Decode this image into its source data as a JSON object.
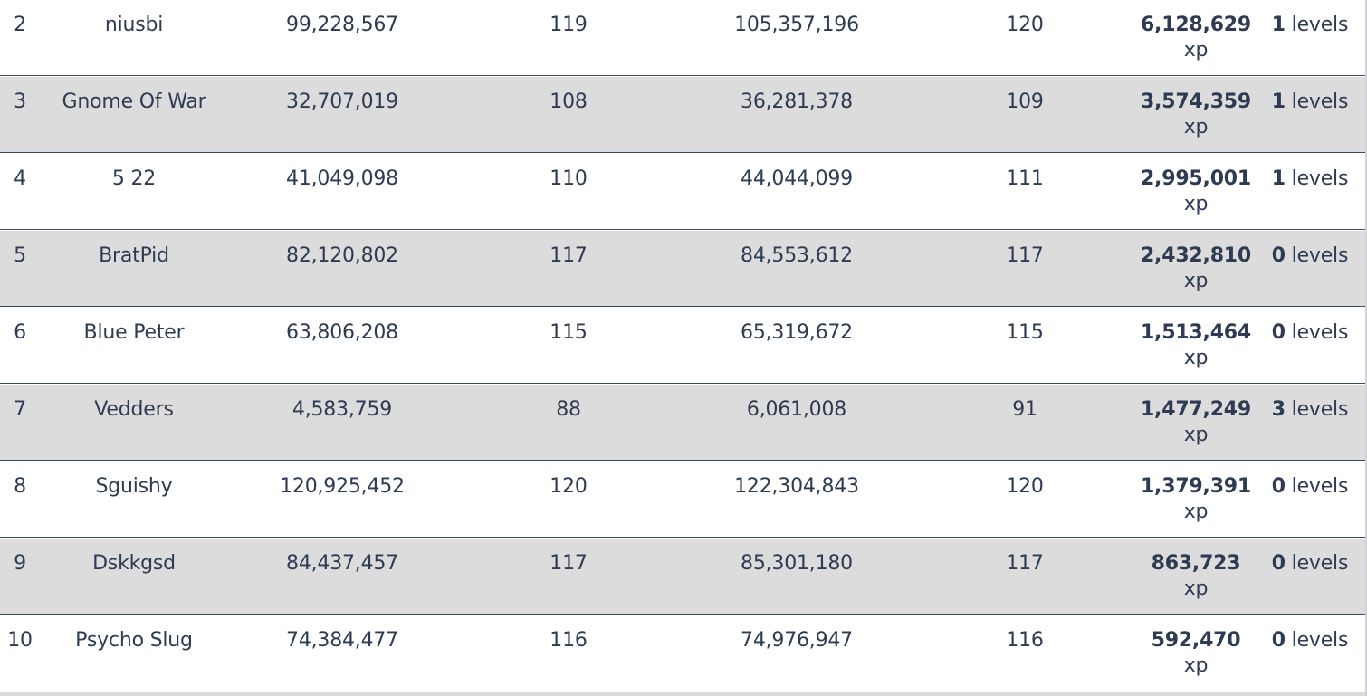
{
  "table": {
    "rows": [
      {
        "rank": "2",
        "name": "niusbi",
        "start_xp": "99,228,567",
        "start_level": "119",
        "end_xp": "105,357,196",
        "end_level": "120",
        "xp_gained": "6,128,629",
        "xp_unit": "xp",
        "levels_gained": "1",
        "levels_unit": "levels"
      },
      {
        "rank": "3",
        "name": "Gnome Of War",
        "start_xp": "32,707,019",
        "start_level": "108",
        "end_xp": "36,281,378",
        "end_level": "109",
        "xp_gained": "3,574,359",
        "xp_unit": "xp",
        "levels_gained": "1",
        "levels_unit": "levels"
      },
      {
        "rank": "4",
        "name": "5 22",
        "start_xp": "41,049,098",
        "start_level": "110",
        "end_xp": "44,044,099",
        "end_level": "111",
        "xp_gained": "2,995,001",
        "xp_unit": "xp",
        "levels_gained": "1",
        "levels_unit": "levels"
      },
      {
        "rank": "5",
        "name": "BratPid",
        "start_xp": "82,120,802",
        "start_level": "117",
        "end_xp": "84,553,612",
        "end_level": "117",
        "xp_gained": "2,432,810",
        "xp_unit": "xp",
        "levels_gained": "0",
        "levels_unit": "levels"
      },
      {
        "rank": "6",
        "name": "Blue Peter",
        "start_xp": "63,806,208",
        "start_level": "115",
        "end_xp": "65,319,672",
        "end_level": "115",
        "xp_gained": "1,513,464",
        "xp_unit": "xp",
        "levels_gained": "0",
        "levels_unit": "levels"
      },
      {
        "rank": "7",
        "name": "Vedders",
        "start_xp": "4,583,759",
        "start_level": "88",
        "end_xp": "6,061,008",
        "end_level": "91",
        "xp_gained": "1,477,249",
        "xp_unit": "xp",
        "levels_gained": "3",
        "levels_unit": "levels"
      },
      {
        "rank": "8",
        "name": "Sguishy",
        "start_xp": "120,925,452",
        "start_level": "120",
        "end_xp": "122,304,843",
        "end_level": "120",
        "xp_gained": "1,379,391",
        "xp_unit": "xp",
        "levels_gained": "0",
        "levels_unit": "levels"
      },
      {
        "rank": "9",
        "name": "Dskkgsd",
        "start_xp": "84,437,457",
        "start_level": "117",
        "end_xp": "85,301,180",
        "end_level": "117",
        "xp_gained": "863,723",
        "xp_unit": "xp",
        "levels_gained": "0",
        "levels_unit": "levels"
      },
      {
        "rank": "10",
        "name": "Psycho Slug",
        "start_xp": "74,384,477",
        "start_level": "116",
        "end_xp": "74,976,947",
        "end_level": "116",
        "xp_gained": "592,470",
        "xp_unit": "xp",
        "levels_gained": "0",
        "levels_unit": "levels"
      }
    ]
  },
  "colors": {
    "text": "#2f3b52",
    "alt_row": "#dcdcdc",
    "row_border": "#3c4a63"
  }
}
